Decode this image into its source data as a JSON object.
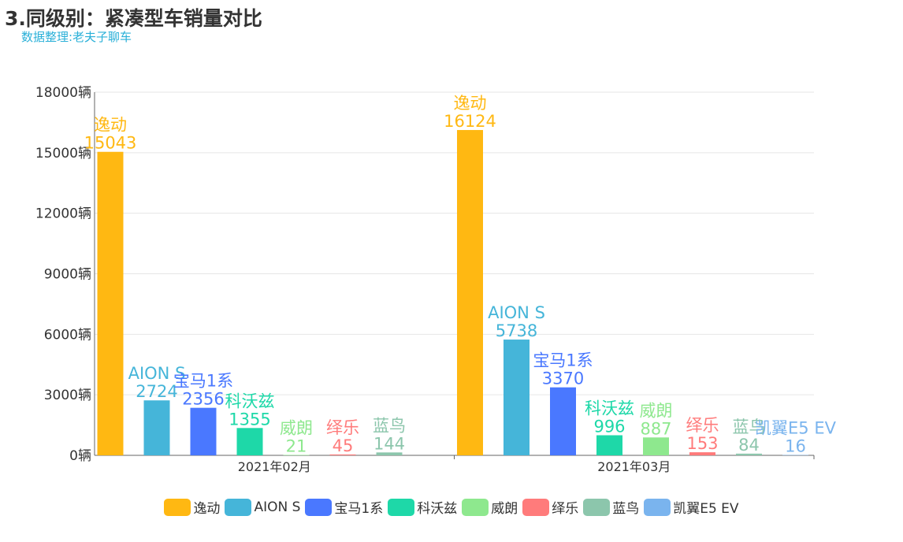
{
  "title": "3.同级别：紧凑型车销量对比",
  "subtitle": "数据整理:老夫子聊车",
  "chart_data": {
    "type": "bar",
    "categories": [
      "2021年02月",
      "2021年03月"
    ],
    "ylim": [
      0,
      18000
    ],
    "yticks": [
      0,
      3000,
      6000,
      9000,
      12000,
      15000,
      18000
    ],
    "yunit": "辆",
    "grid": true,
    "legend_position": "bottom",
    "series": [
      {
        "name": "逸动",
        "color": "#ffb812",
        "values": [
          15043,
          16124
        ]
      },
      {
        "name": "AION S",
        "color": "#45b5d9",
        "values": [
          2724,
          5738
        ]
      },
      {
        "name": "宝马1系",
        "color": "#4a78ff",
        "values": [
          2356,
          3370
        ]
      },
      {
        "name": "科沃兹",
        "color": "#1ed8a8",
        "values": [
          1355,
          996
        ]
      },
      {
        "name": "威朗",
        "color": "#8ee88e",
        "values": [
          21,
          887
        ]
      },
      {
        "name": "绎乐",
        "color": "#ff7b7b",
        "values": [
          45,
          153
        ]
      },
      {
        "name": "蓝鸟",
        "color": "#8cc6ac",
        "values": [
          144,
          84
        ]
      },
      {
        "name": "凯翼E5 EV",
        "color": "#7ab4ee",
        "values": [
          null,
          16
        ]
      }
    ]
  }
}
